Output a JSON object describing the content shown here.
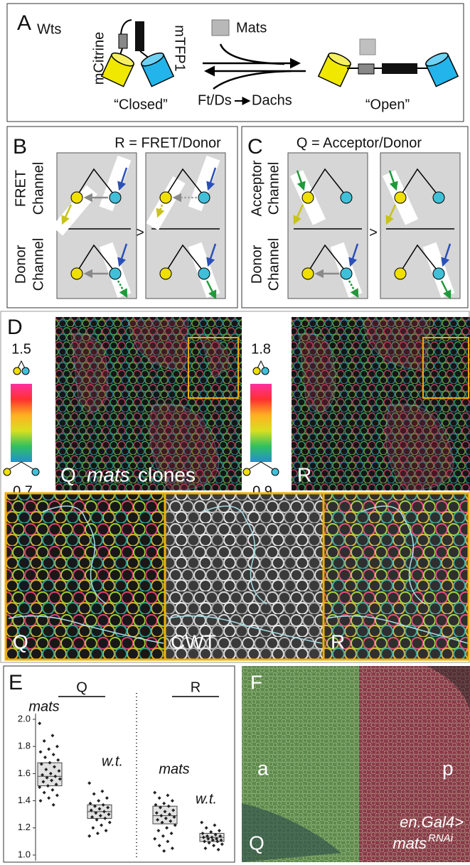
{
  "panel_a": {
    "label": "A",
    "wts": "Wts",
    "mcitrine": "mCitrine",
    "mtfp1": "mTFP1",
    "mats": "Mats",
    "closed": "“Closed”",
    "open": "“Open”",
    "ftds": "Ft/Ds",
    "dachs": "Dachs"
  },
  "panel_b": {
    "label": "B",
    "title": "R = FRET/Donor",
    "top_channel": [
      "FRET",
      "Channel"
    ],
    "bottom_channel": [
      "Donor",
      "Channel"
    ],
    "comparator": ">"
  },
  "panel_c": {
    "label": "C",
    "title": "Q = Acceptor/Donor",
    "top_channel": [
      "Acceptor",
      "Channel"
    ],
    "bottom_channel": [
      "Donor",
      "Channel"
    ],
    "comparator": ">"
  },
  "panel_d": {
    "label": "D",
    "q_scale": [
      1.5,
      0.7
    ],
    "r_scale": [
      1.8,
      0.9
    ],
    "q_image": [
      "Q",
      "mats",
      "clones"
    ],
    "r_image": "R",
    "zoom_labels": [
      "Q",
      "CWT",
      "R"
    ]
  },
  "panel_e": {
    "label": "E"
  },
  "chart_data": {
    "type": "box",
    "color": "#222222",
    "box_color": "#e2e2e2",
    "ylim": [
      1.0,
      2.0
    ],
    "yticks": [
      {
        "value": 1,
        "label": "1.0"
      },
      1.2,
      1.4,
      1.6,
      1.8,
      {
        "value": 2,
        "label": "2.0"
      }
    ],
    "groups": [
      {
        "name": "Q",
        "series": [
          {
            "name": "mats",
            "q1": 1.51,
            "median": 1.58,
            "q3": 1.68,
            "values": [
              1.97,
              1.88,
              1.84,
              1.8,
              1.78,
              1.76,
              1.74,
              1.72,
              1.7,
              1.68,
              1.67,
              1.65,
              1.63,
              1.62,
              1.6,
              1.59,
              1.58,
              1.57,
              1.56,
              1.55,
              1.54,
              1.52,
              1.51,
              1.5,
              1.48,
              1.46,
              1.44,
              1.42,
              1.4,
              1.37
            ]
          },
          {
            "name": "w.t.",
            "q1": 1.27,
            "median": 1.32,
            "q3": 1.37,
            "values": [
              1.53,
              1.47,
              1.45,
              1.42,
              1.4,
              1.38,
              1.37,
              1.36,
              1.35,
              1.34,
              1.33,
              1.32,
              1.31,
              1.3,
              1.29,
              1.28,
              1.27,
              1.26,
              1.24,
              1.22,
              1.2,
              1.18,
              1.16,
              1.14
            ]
          }
        ]
      },
      {
        "name": "R",
        "series": [
          {
            "name": "mats",
            "q1": 1.23,
            "median": 1.29,
            "q3": 1.36,
            "values": [
              1.46,
              1.44,
              1.42,
              1.4,
              1.38,
              1.37,
              1.36,
              1.35,
              1.33,
              1.32,
              1.31,
              1.3,
              1.29,
              1.28,
              1.27,
              1.26,
              1.25,
              1.24,
              1.22,
              1.2,
              1.18,
              1.16,
              1.14,
              1.12,
              1.1,
              1.07,
              1.05,
              1.03
            ]
          },
          {
            "name": "w.t.",
            "q1": 1.1,
            "median": 1.13,
            "q3": 1.16,
            "values": [
              1.24,
              1.22,
              1.2,
              1.18,
              1.17,
              1.16,
              1.15,
              1.14,
              1.14,
              1.13,
              1.13,
              1.12,
              1.12,
              1.11,
              1.11,
              1.1,
              1.1,
              1.09,
              1.08,
              1.07,
              1.05,
              1.04
            ]
          }
        ]
      }
    ]
  },
  "panel_f": {
    "label": "F",
    "anterior": "a",
    "posterior": "p",
    "channel": "Q",
    "genotype": "en.Gal4>",
    "gene": "mats",
    "superscript": "RNAi"
  }
}
